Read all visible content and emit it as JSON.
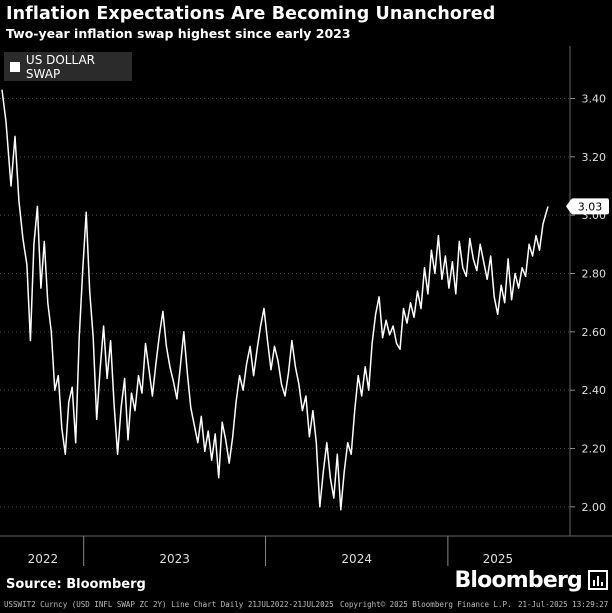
{
  "header": {
    "title": "Inflation Expectations Are Becoming Unanchored",
    "subtitle": "Two-year inflation swap highest since early 2023"
  },
  "legend": {
    "label": "US DOLLAR SWAP"
  },
  "source": "Source: Bloomberg",
  "brand": "Bloomberg",
  "footer": {
    "left": "USSWIT2 Curncy (USD INFL SWAP ZC 2Y) Line Chart  Daily 21JUL2022-21JUL2025",
    "copyright": "Copyright© 2025 Bloomberg Finance L.P.",
    "timestamp": "21-Jul-2025 13:29:27"
  },
  "colors": {
    "background": "#000000",
    "line": "#ffffff",
    "grid": "#3a3a3a"
  },
  "chart_data": {
    "type": "line",
    "title": "Inflation Expectations Are Becoming Unanchored",
    "subtitle": "Two-year inflation swap highest since early 2023",
    "x_tick_labels": [
      "2022",
      "2023",
      "2024",
      "2025"
    ],
    "y_ticks": [
      "2.00",
      "2.20",
      "2.40",
      "2.60",
      "2.80",
      "3.00",
      "3.20",
      "3.40"
    ],
    "ylim": [
      1.9,
      3.58
    ],
    "last_value_label": "3.03",
    "grid": "vertical dotted lines at y-ticks",
    "legend_position": "top-left",
    "series": [
      {
        "name": "US DOLLAR SWAP",
        "points": [
          [
            "2022-07-21",
            3.43
          ],
          [
            "2022-07-29",
            3.32
          ],
          [
            "2022-08-08",
            3.1
          ],
          [
            "2022-08-16",
            3.27
          ],
          [
            "2022-08-24",
            3.05
          ],
          [
            "2022-09-01",
            2.92
          ],
          [
            "2022-09-09",
            2.83
          ],
          [
            "2022-09-16",
            2.57
          ],
          [
            "2022-09-23",
            2.9
          ],
          [
            "2022-09-30",
            3.03
          ],
          [
            "2022-10-07",
            2.75
          ],
          [
            "2022-10-14",
            2.91
          ],
          [
            "2022-10-21",
            2.7
          ],
          [
            "2022-10-28",
            2.6
          ],
          [
            "2022-11-04",
            2.4
          ],
          [
            "2022-11-11",
            2.45
          ],
          [
            "2022-11-18",
            2.27
          ],
          [
            "2022-11-25",
            2.18
          ],
          [
            "2022-12-02",
            2.36
          ],
          [
            "2022-12-09",
            2.41
          ],
          [
            "2022-12-16",
            2.22
          ],
          [
            "2022-12-23",
            2.58
          ],
          [
            "2022-12-30",
            2.81
          ],
          [
            "2023-01-06",
            3.01
          ],
          [
            "2023-01-13",
            2.74
          ],
          [
            "2023-01-20",
            2.58
          ],
          [
            "2023-01-27",
            2.3
          ],
          [
            "2023-02-03",
            2.47
          ],
          [
            "2023-02-10",
            2.62
          ],
          [
            "2023-02-17",
            2.44
          ],
          [
            "2023-02-24",
            2.57
          ],
          [
            "2023-03-03",
            2.35
          ],
          [
            "2023-03-10",
            2.18
          ],
          [
            "2023-03-17",
            2.34
          ],
          [
            "2023-03-24",
            2.44
          ],
          [
            "2023-03-31",
            2.23
          ],
          [
            "2023-04-07",
            2.39
          ],
          [
            "2023-04-14",
            2.33
          ],
          [
            "2023-04-21",
            2.45
          ],
          [
            "2023-04-28",
            2.39
          ],
          [
            "2023-05-05",
            2.56
          ],
          [
            "2023-05-12",
            2.47
          ],
          [
            "2023-05-19",
            2.38
          ],
          [
            "2023-05-26",
            2.49
          ],
          [
            "2023-06-02",
            2.59
          ],
          [
            "2023-06-09",
            2.67
          ],
          [
            "2023-06-16",
            2.55
          ],
          [
            "2023-06-23",
            2.48
          ],
          [
            "2023-06-30",
            2.43
          ],
          [
            "2023-07-07",
            2.37
          ],
          [
            "2023-07-14",
            2.48
          ],
          [
            "2023-07-21",
            2.6
          ],
          [
            "2023-07-28",
            2.46
          ],
          [
            "2023-08-04",
            2.34
          ],
          [
            "2023-08-11",
            2.28
          ],
          [
            "2023-08-18",
            2.22
          ],
          [
            "2023-08-25",
            2.31
          ],
          [
            "2023-09-01",
            2.19
          ],
          [
            "2023-09-08",
            2.26
          ],
          [
            "2023-09-15",
            2.16
          ],
          [
            "2023-09-22",
            2.25
          ],
          [
            "2023-09-29",
            2.1
          ],
          [
            "2023-10-06",
            2.29
          ],
          [
            "2023-10-13",
            2.23
          ],
          [
            "2023-10-20",
            2.15
          ],
          [
            "2023-10-27",
            2.24
          ],
          [
            "2023-11-03",
            2.36
          ],
          [
            "2023-11-10",
            2.45
          ],
          [
            "2023-11-17",
            2.4
          ],
          [
            "2023-11-24",
            2.49
          ],
          [
            "2023-12-01",
            2.55
          ],
          [
            "2023-12-08",
            2.45
          ],
          [
            "2023-12-15",
            2.54
          ],
          [
            "2023-12-22",
            2.62
          ],
          [
            "2023-12-29",
            2.68
          ],
          [
            "2024-01-05",
            2.57
          ],
          [
            "2024-01-12",
            2.47
          ],
          [
            "2024-01-19",
            2.55
          ],
          [
            "2024-01-26",
            2.5
          ],
          [
            "2024-02-02",
            2.42
          ],
          [
            "2024-02-09",
            2.38
          ],
          [
            "2024-02-16",
            2.46
          ],
          [
            "2024-02-23",
            2.57
          ],
          [
            "2024-03-01",
            2.48
          ],
          [
            "2024-03-08",
            2.42
          ],
          [
            "2024-03-15",
            2.33
          ],
          [
            "2024-03-22",
            2.38
          ],
          [
            "2024-03-29",
            2.24
          ],
          [
            "2024-04-05",
            2.33
          ],
          [
            "2024-04-12",
            2.22
          ],
          [
            "2024-04-19",
            2.0
          ],
          [
            "2024-04-26",
            2.12
          ],
          [
            "2024-05-03",
            2.22
          ],
          [
            "2024-05-10",
            2.1
          ],
          [
            "2024-05-17",
            2.03
          ],
          [
            "2024-05-24",
            2.18
          ],
          [
            "2024-05-31",
            1.99
          ],
          [
            "2024-06-07",
            2.12
          ],
          [
            "2024-06-14",
            2.22
          ],
          [
            "2024-06-21",
            2.18
          ],
          [
            "2024-06-28",
            2.33
          ],
          [
            "2024-07-05",
            2.45
          ],
          [
            "2024-07-12",
            2.38
          ],
          [
            "2024-07-19",
            2.48
          ],
          [
            "2024-07-26",
            2.4
          ],
          [
            "2024-08-02",
            2.56
          ],
          [
            "2024-08-09",
            2.66
          ],
          [
            "2024-08-16",
            2.72
          ],
          [
            "2024-08-23",
            2.58
          ],
          [
            "2024-08-30",
            2.64
          ],
          [
            "2024-09-06",
            2.59
          ],
          [
            "2024-09-13",
            2.62
          ],
          [
            "2024-09-20",
            2.56
          ],
          [
            "2024-09-27",
            2.54
          ],
          [
            "2024-10-04",
            2.68
          ],
          [
            "2024-10-11",
            2.63
          ],
          [
            "2024-10-18",
            2.7
          ],
          [
            "2024-10-25",
            2.65
          ],
          [
            "2024-11-01",
            2.74
          ],
          [
            "2024-11-08",
            2.68
          ],
          [
            "2024-11-15",
            2.82
          ],
          [
            "2024-11-22",
            2.73
          ],
          [
            "2024-11-29",
            2.88
          ],
          [
            "2024-12-06",
            2.8
          ],
          [
            "2024-12-13",
            2.93
          ],
          [
            "2024-12-20",
            2.78
          ],
          [
            "2024-12-27",
            2.86
          ],
          [
            "2025-01-03",
            2.75
          ],
          [
            "2025-01-10",
            2.84
          ],
          [
            "2025-01-17",
            2.73
          ],
          [
            "2025-01-24",
            2.91
          ],
          [
            "2025-01-31",
            2.82
          ],
          [
            "2025-02-07",
            2.79
          ],
          [
            "2025-02-14",
            2.92
          ],
          [
            "2025-02-21",
            2.85
          ],
          [
            "2025-02-28",
            2.81
          ],
          [
            "2025-03-07",
            2.9
          ],
          [
            "2025-03-14",
            2.84
          ],
          [
            "2025-03-21",
            2.78
          ],
          [
            "2025-03-28",
            2.86
          ],
          [
            "2025-04-04",
            2.72
          ],
          [
            "2025-04-11",
            2.66
          ],
          [
            "2025-04-18",
            2.76
          ],
          [
            "2025-04-25",
            2.7
          ],
          [
            "2025-05-02",
            2.85
          ],
          [
            "2025-05-09",
            2.71
          ],
          [
            "2025-05-16",
            2.8
          ],
          [
            "2025-05-23",
            2.75
          ],
          [
            "2025-05-30",
            2.82
          ],
          [
            "2025-06-06",
            2.79
          ],
          [
            "2025-06-13",
            2.9
          ],
          [
            "2025-06-20",
            2.86
          ],
          [
            "2025-06-27",
            2.93
          ],
          [
            "2025-07-04",
            2.88
          ],
          [
            "2025-07-11",
            2.97
          ],
          [
            "2025-07-21",
            3.03
          ]
        ]
      }
    ]
  }
}
